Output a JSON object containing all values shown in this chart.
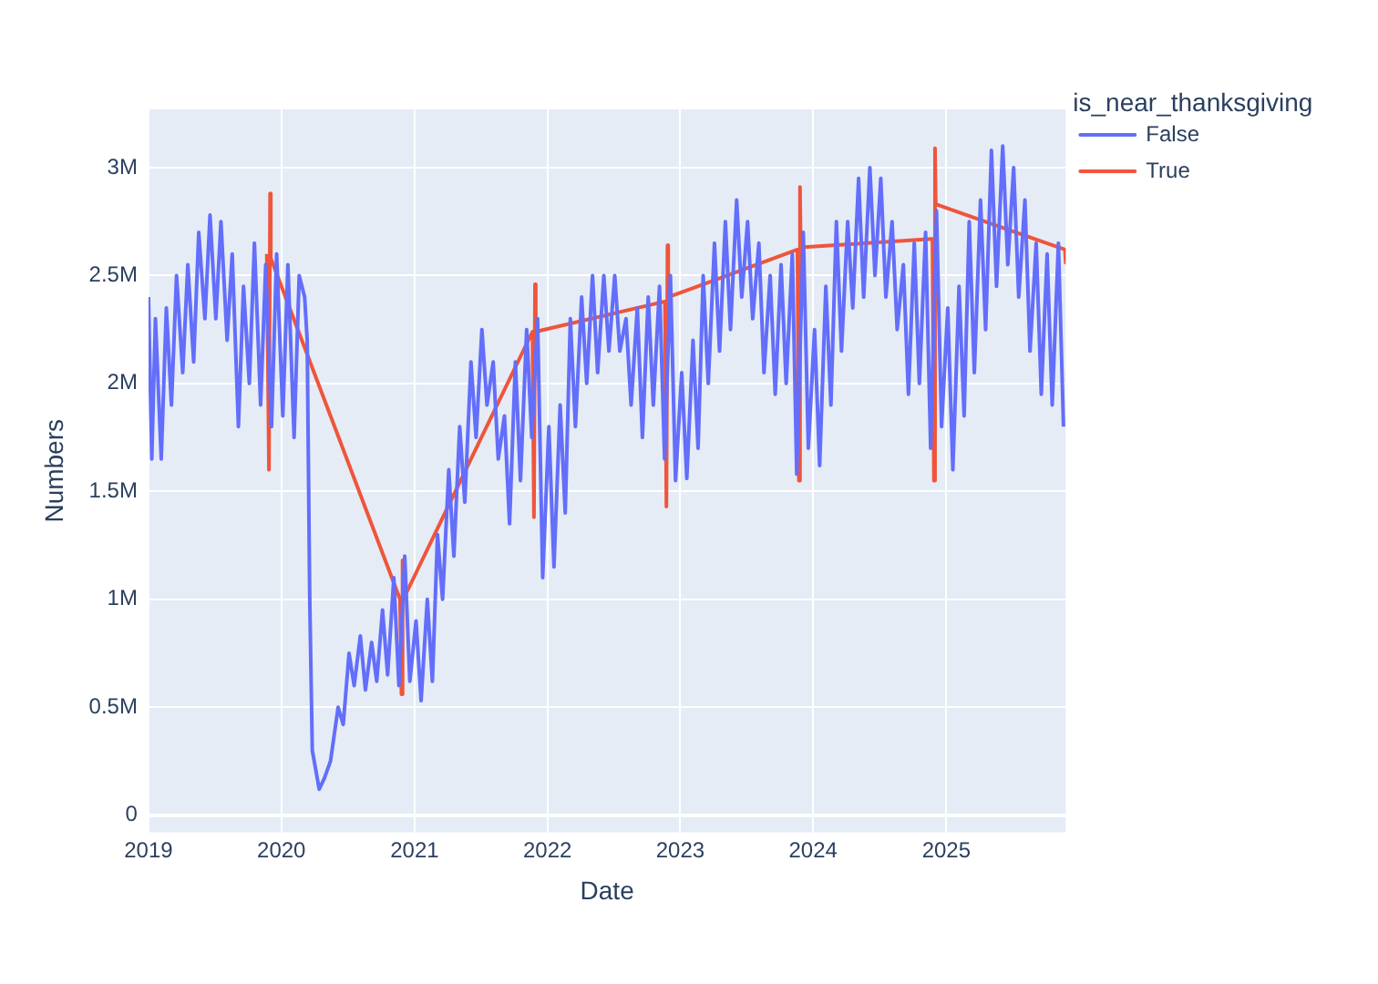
{
  "chart_data": {
    "type": "line",
    "xlabel": "Date",
    "ylabel": "Numbers",
    "legend_title": "is_near_thanksgiving",
    "legend": "top right",
    "grid": true,
    "xlim": [
      "2019-01-01",
      "2025-11-25"
    ],
    "xticks": [
      "2019",
      "2020",
      "2021",
      "2022",
      "2023",
      "2024",
      "2025"
    ],
    "ylim": [
      -80000,
      3270000
    ],
    "yticks": [
      0,
      {
        "value": 500000,
        "label": "0.5M"
      },
      {
        "value": 1000000,
        "label": "1M"
      },
      {
        "value": 1500000,
        "label": "1.5M"
      },
      {
        "value": 2000000,
        "label": "2M"
      },
      {
        "value": 2500000,
        "label": "2.5M"
      },
      {
        "value": 3000000,
        "label": "3M"
      }
    ],
    "series": [
      {
        "name": "False",
        "color": "#636efa",
        "x": [
          "2019-01-01",
          "2019-01-10",
          "2019-01-20",
          "2019-02-05",
          "2019-02-19",
          "2019-03-05",
          "2019-03-19",
          "2019-04-05",
          "2019-04-19",
          "2019-05-05",
          "2019-05-19",
          "2019-06-05",
          "2019-06-19",
          "2019-07-05",
          "2019-07-19",
          "2019-08-05",
          "2019-08-19",
          "2019-09-05",
          "2019-09-19",
          "2019-10-05",
          "2019-10-19",
          "2019-11-05",
          "2019-11-19",
          "2019-12-05",
          "2019-12-19",
          "2020-01-05",
          "2020-01-19",
          "2020-02-05",
          "2020-02-19",
          "2020-03-05",
          "2020-03-12",
          "2020-03-19",
          "2020-03-26",
          "2020-04-14",
          "2020-04-28",
          "2020-05-15",
          "2020-06-05",
          "2020-06-19",
          "2020-07-05",
          "2020-07-19",
          "2020-08-05",
          "2020-08-19",
          "2020-09-05",
          "2020-09-19",
          "2020-10-05",
          "2020-10-19",
          "2020-11-05",
          "2020-11-19",
          "2020-12-05",
          "2020-12-19",
          "2021-01-05",
          "2021-01-19",
          "2021-02-05",
          "2021-02-19",
          "2021-03-05",
          "2021-03-19",
          "2021-04-05",
          "2021-04-19",
          "2021-05-05",
          "2021-05-19",
          "2021-06-05",
          "2021-06-19",
          "2021-07-05",
          "2021-07-19",
          "2021-08-05",
          "2021-08-19",
          "2021-09-05",
          "2021-09-19",
          "2021-10-05",
          "2021-10-19",
          "2021-11-05",
          "2021-11-19",
          "2021-12-05",
          "2021-12-19",
          "2022-01-05",
          "2022-01-19",
          "2022-02-05",
          "2022-02-19",
          "2022-03-05",
          "2022-03-19",
          "2022-04-05",
          "2022-04-19",
          "2022-05-05",
          "2022-05-19",
          "2022-06-05",
          "2022-06-19",
          "2022-07-05",
          "2022-07-19",
          "2022-08-05",
          "2022-08-19",
          "2022-09-05",
          "2022-09-19",
          "2022-10-05",
          "2022-10-19",
          "2022-11-05",
          "2022-11-19",
          "2022-12-05",
          "2022-12-19",
          "2023-01-05",
          "2023-01-19",
          "2023-02-05",
          "2023-02-19",
          "2023-03-05",
          "2023-03-19",
          "2023-04-05",
          "2023-04-19",
          "2023-05-05",
          "2023-05-19",
          "2023-06-05",
          "2023-06-19",
          "2023-07-05",
          "2023-07-19",
          "2023-08-05",
          "2023-08-19",
          "2023-09-05",
          "2023-09-19",
          "2023-10-05",
          "2023-10-19",
          "2023-11-05",
          "2023-11-17",
          "2023-12-05",
          "2023-12-19",
          "2024-01-05",
          "2024-01-19",
          "2024-02-05",
          "2024-02-19",
          "2024-03-05",
          "2024-03-19",
          "2024-04-05",
          "2024-04-19",
          "2024-05-05",
          "2024-05-19",
          "2024-06-05",
          "2024-06-19",
          "2024-07-05",
          "2024-07-19",
          "2024-08-05",
          "2024-08-19",
          "2024-09-05",
          "2024-09-19",
          "2024-10-05",
          "2024-10-19",
          "2024-11-05",
          "2024-11-19",
          "2024-12-05",
          "2024-12-19",
          "2025-01-05",
          "2025-01-19",
          "2025-02-05",
          "2025-02-19",
          "2025-03-05",
          "2025-03-19",
          "2025-04-05",
          "2025-04-19",
          "2025-05-05",
          "2025-05-19",
          "2025-06-05",
          "2025-06-19",
          "2025-07-05",
          "2025-07-19",
          "2025-08-05",
          "2025-08-19",
          "2025-09-05",
          "2025-09-19",
          "2025-10-05",
          "2025-10-19",
          "2025-11-05",
          "2025-11-19"
        ],
        "values": [
          2400000,
          1650000,
          2300000,
          1650000,
          2350000,
          1900000,
          2500000,
          2050000,
          2550000,
          2100000,
          2700000,
          2300000,
          2780000,
          2300000,
          2750000,
          2200000,
          2600000,
          1800000,
          2450000,
          2000000,
          2650000,
          1900000,
          2550000,
          1800000,
          2600000,
          1850000,
          2550000,
          1750000,
          2500000,
          2400000,
          2200000,
          1000000,
          300000,
          120000,
          170000,
          250000,
          500000,
          420000,
          750000,
          600000,
          830000,
          580000,
          800000,
          620000,
          950000,
          650000,
          1100000,
          600000,
          1200000,
          620000,
          900000,
          530000,
          1000000,
          620000,
          1300000,
          1000000,
          1600000,
          1200000,
          1800000,
          1450000,
          2100000,
          1750000,
          2250000,
          1900000,
          2100000,
          1650000,
          1850000,
          1350000,
          2100000,
          1550000,
          2250000,
          1750000,
          2300000,
          1100000,
          1800000,
          1150000,
          1900000,
          1400000,
          2300000,
          1800000,
          2400000,
          2000000,
          2500000,
          2050000,
          2500000,
          2150000,
          2500000,
          2150000,
          2300000,
          1900000,
          2350000,
          1750000,
          2400000,
          1900000,
          2450000,
          1650000,
          2500000,
          1550000,
          2050000,
          1560000,
          2200000,
          1700000,
          2500000,
          2000000,
          2650000,
          2150000,
          2750000,
          2250000,
          2850000,
          2400000,
          2750000,
          2300000,
          2650000,
          2050000,
          2500000,
          1950000,
          2550000,
          2000000,
          2600000,
          1580000,
          2700000,
          1700000,
          2250000,
          1620000,
          2450000,
          1900000,
          2750000,
          2150000,
          2750000,
          2350000,
          2950000,
          2400000,
          3000000,
          2500000,
          2950000,
          2400000,
          2750000,
          2250000,
          2550000,
          1950000,
          2650000,
          2000000,
          2700000,
          1700000,
          2800000,
          1800000,
          2350000,
          1600000,
          2450000,
          1850000,
          2750000,
          2050000,
          2850000,
          2250000,
          3080000,
          2450000,
          3100000,
          2550000,
          3000000,
          2400000,
          2850000,
          2150000,
          2650000,
          1950000,
          2600000,
          1900000,
          2650000,
          1800000
        ]
      },
      {
        "name": "True",
        "color": "#ef553b",
        "x": [
          "2019-11-22",
          "2019-11-28",
          "2019-12-01",
          "2019-12-03",
          "2020-11-22",
          "2020-11-26",
          "2020-11-29",
          "2020-12-01",
          "2021-11-21",
          "2021-11-25",
          "2021-11-28",
          "2021-11-30",
          "2022-11-20",
          "2022-11-24",
          "2022-11-27",
          "2022-11-29",
          "2023-11-19",
          "2023-11-23",
          "2023-11-26",
          "2023-11-28",
          "2024-11-24",
          "2024-11-28",
          "2024-12-01",
          "2024-12-03",
          "2025-11-23",
          "2025-11-25"
        ],
        "values": [
          2600000,
          1600000,
          2880000,
          2580000,
          1000000,
          560000,
          1180000,
          1000000,
          2240000,
          1380000,
          2460000,
          2240000,
          2380000,
          1430000,
          2640000,
          2400000,
          2620000,
          1550000,
          2910000,
          2630000,
          2670000,
          1550000,
          3090000,
          2830000,
          2620000,
          2560000
        ]
      }
    ]
  }
}
